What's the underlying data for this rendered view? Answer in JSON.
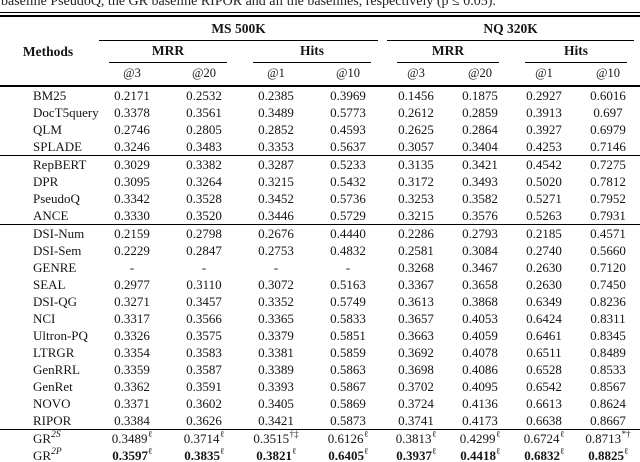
{
  "caption_fragment": "baseline PseudoQ, the GR baseline RIPOR and all the baselines, respectively (p ≤ 0.05).",
  "table": {
    "methods_header": "Methods",
    "datasets": [
      {
        "label": "MS 500K"
      },
      {
        "label": "NQ 320K"
      }
    ],
    "metric_groups": [
      "MRR",
      "Hits",
      "MRR",
      "Hits"
    ],
    "cutoffs": [
      "@3",
      "@20",
      "@1",
      "@10",
      "@3",
      "@20",
      "@1",
      "@10"
    ],
    "groups": [
      {
        "rows": [
          {
            "method": "BM25",
            "values": [
              "0.2171",
              "0.2532",
              "0.2385",
              "0.3969",
              "0.1456",
              "0.1875",
              "0.2927",
              "0.6016"
            ]
          },
          {
            "method": "DocT5query",
            "values": [
              "0.3378",
              "0.3561",
              "0.3489",
              "0.5773",
              "0.2612",
              "0.2859",
              "0.3913",
              "0.697"
            ]
          },
          {
            "method": "QLM",
            "values": [
              "0.2746",
              "0.2805",
              "0.2852",
              "0.4593",
              "0.2625",
              "0.2864",
              "0.3927",
              "0.6979"
            ]
          },
          {
            "method": "SPLADE",
            "values": [
              "0.3246",
              "0.3483",
              "0.3353",
              "0.5637",
              "0.3057",
              "0.3404",
              "0.4253",
              "0.7146"
            ]
          }
        ]
      },
      {
        "rows": [
          {
            "method": "RepBERT",
            "values": [
              "0.3029",
              "0.3382",
              "0.3287",
              "0.5233",
              "0.3135",
              "0.3421",
              "0.4542",
              "0.7275"
            ]
          },
          {
            "method": "DPR",
            "values": [
              "0.3095",
              "0.3264",
              "0.3215",
              "0.5432",
              "0.3172",
              "0.3493",
              "0.5020",
              "0.7812"
            ]
          },
          {
            "method": "PseudoQ",
            "values": [
              "0.3342",
              "0.3528",
              "0.3452",
              "0.5736",
              "0.3253",
              "0.3582",
              "0.5271",
              "0.7952"
            ]
          },
          {
            "method": "ANCE",
            "values": [
              "0.3330",
              "0.3520",
              "0.3446",
              "0.5729",
              "0.3215",
              "0.3576",
              "0.5263",
              "0.7931"
            ]
          }
        ]
      },
      {
        "rows": [
          {
            "method": "DSI-Num",
            "values": [
              "0.2159",
              "0.2798",
              "0.2676",
              "0.4440",
              "0.2286",
              "0.2793",
              "0.2185",
              "0.4571"
            ]
          },
          {
            "method": "DSI-Sem",
            "values": [
              "0.2229",
              "0.2847",
              "0.2753",
              "0.4832",
              "0.2581",
              "0.3084",
              "0.2740",
              "0.5660"
            ]
          },
          {
            "method": "GENRE",
            "values": [
              "-",
              "-",
              "-",
              "-",
              "0.3268",
              "0.3467",
              "0.2630",
              "0.7120"
            ]
          },
          {
            "method": "SEAL",
            "values": [
              "0.2977",
              "0.3110",
              "0.3072",
              "0.5163",
              "0.3367",
              "0.3658",
              "0.2630",
              "0.7450"
            ]
          },
          {
            "method": "DSI-QG",
            "values": [
              "0.3271",
              "0.3457",
              "0.3352",
              "0.5749",
              "0.3613",
              "0.3868",
              "0.6349",
              "0.8236"
            ]
          },
          {
            "method": "NCI",
            "values": [
              "0.3317",
              "0.3566",
              "0.3365",
              "0.5833",
              "0.3657",
              "0.4053",
              "0.6424",
              "0.8311"
            ]
          },
          {
            "method": "Ultron-PQ",
            "values": [
              "0.3326",
              "0.3575",
              "0.3379",
              "0.5851",
              "0.3663",
              "0.4059",
              "0.6461",
              "0.8345"
            ]
          },
          {
            "method": "LTRGR",
            "values": [
              "0.3354",
              "0.3583",
              "0.3381",
              "0.5859",
              "0.3692",
              "0.4078",
              "0.6511",
              "0.8489"
            ]
          },
          {
            "method": "GenRRL",
            "values": [
              "0.3359",
              "0.3587",
              "0.3389",
              "0.5863",
              "0.3698",
              "0.4086",
              "0.6528",
              "0.8533"
            ]
          },
          {
            "method": "GenRet",
            "values": [
              "0.3362",
              "0.3591",
              "0.3393",
              "0.5867",
              "0.3702",
              "0.4095",
              "0.6542",
              "0.8567"
            ]
          },
          {
            "method": "NOVO",
            "values": [
              "0.3371",
              "0.3602",
              "0.3405",
              "0.5869",
              "0.3724",
              "0.4136",
              "0.6613",
              "0.8624"
            ]
          },
          {
            "method": "RIPOR",
            "values": [
              "0.3384",
              "0.3626",
              "0.3421",
              "0.5873",
              "0.3741",
              "0.4173",
              "0.6638",
              "0.8667"
            ]
          }
        ]
      },
      {
        "rows": [
          {
            "method": {
              "base": "GR",
              "sup": "2S"
            },
            "bold": false,
            "values": [
              {
                "v": "0.3489",
                "sup": "ℓ"
              },
              {
                "v": "0.3714",
                "sup": "ℓ"
              },
              {
                "v": "0.3515",
                "sup": "†‡"
              },
              {
                "v": "0.6126",
                "sup": "ℓ"
              },
              {
                "v": "0.3813",
                "sup": "ℓ"
              },
              {
                "v": "0.4299",
                "sup": "ℓ"
              },
              {
                "v": "0.6724",
                "sup": "ℓ"
              },
              {
                "v": "0.8713",
                "sup": "*†"
              }
            ]
          },
          {
            "method": {
              "base": "GR",
              "sup": "2P"
            },
            "bold": true,
            "values": [
              {
                "v": "0.3597",
                "sup": "ℓ"
              },
              {
                "v": "0.3835",
                "sup": "ℓ"
              },
              {
                "v": "0.3821",
                "sup": "ℓ"
              },
              {
                "v": "0.6405",
                "sup": "ℓ"
              },
              {
                "v": "0.3937",
                "sup": "ℓ"
              },
              {
                "v": "0.4418",
                "sup": "ℓ"
              },
              {
                "v": "0.6832",
                "sup": "ℓ"
              },
              {
                "v": "0.8825",
                "sup": "ℓ"
              }
            ]
          }
        ]
      }
    ]
  }
}
